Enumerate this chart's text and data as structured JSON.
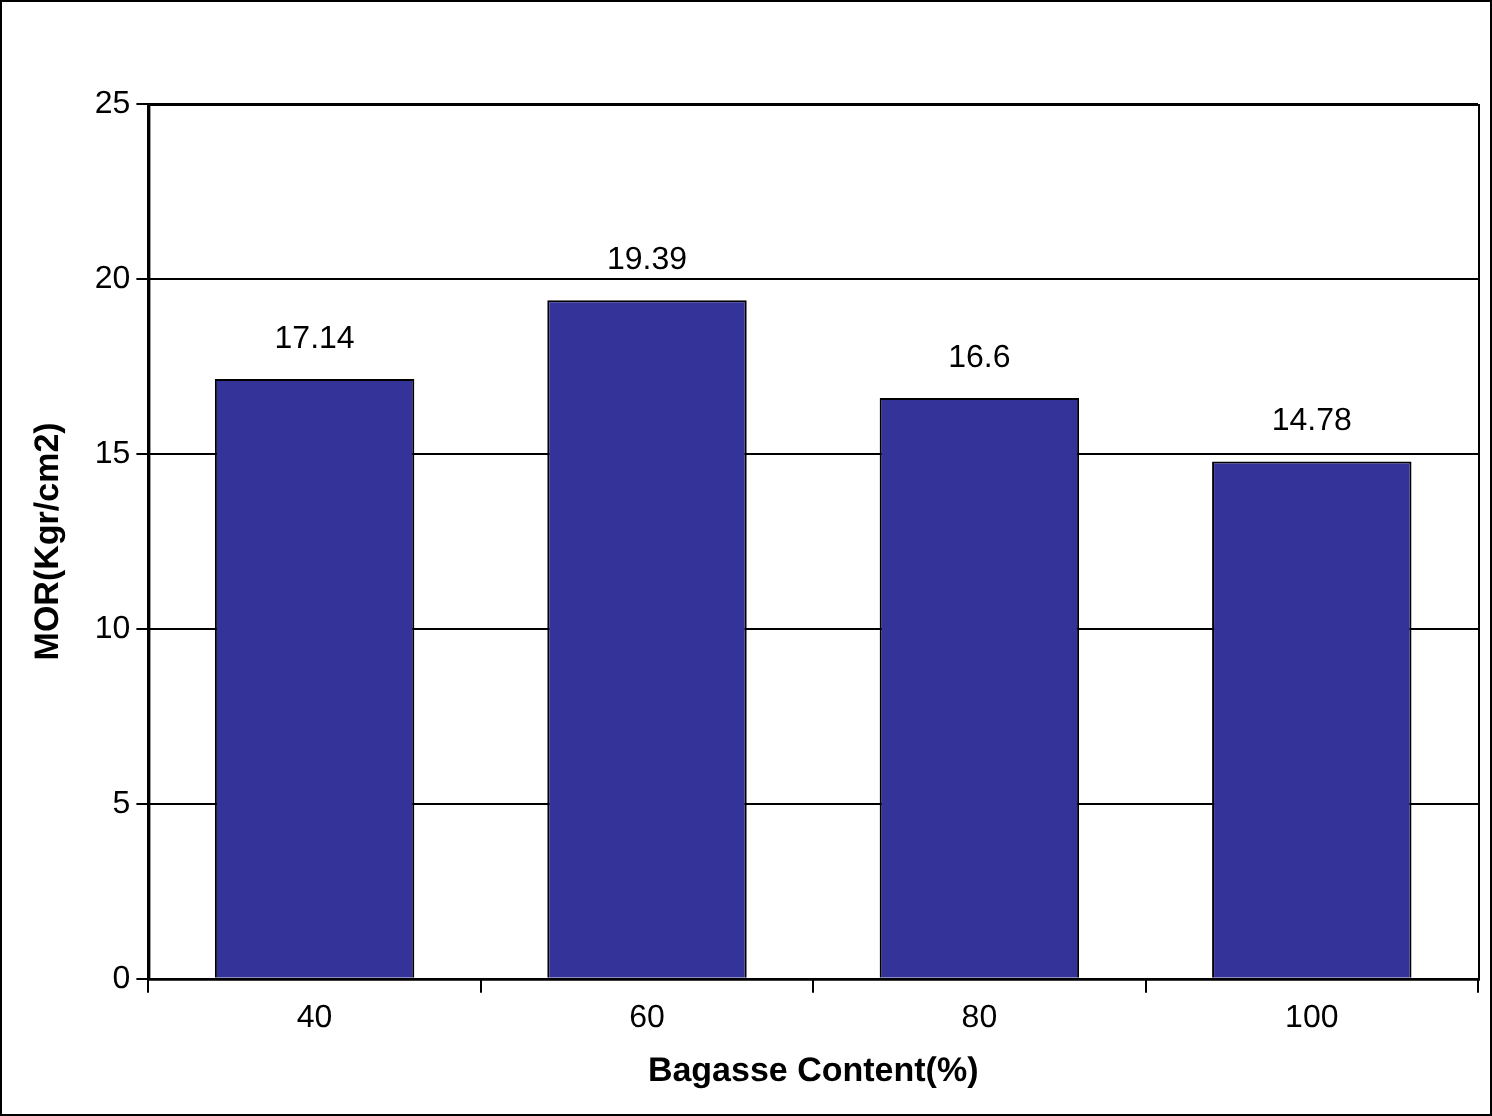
{
  "chart_data": {
    "type": "bar",
    "xlabel": "Bagasse Content(%)",
    "ylabel": "MOR(Kgr/cm2)",
    "categories": [
      "40",
      "60",
      "80",
      "100"
    ],
    "values": [
      17.14,
      19.39,
      16.6,
      14.78
    ],
    "color": "#333399",
    "ylim": [
      0,
      25
    ],
    "yticks": [
      0,
      5,
      10,
      15,
      20,
      25
    ],
    "grid": "y",
    "legend": false,
    "data_labels": true
  }
}
